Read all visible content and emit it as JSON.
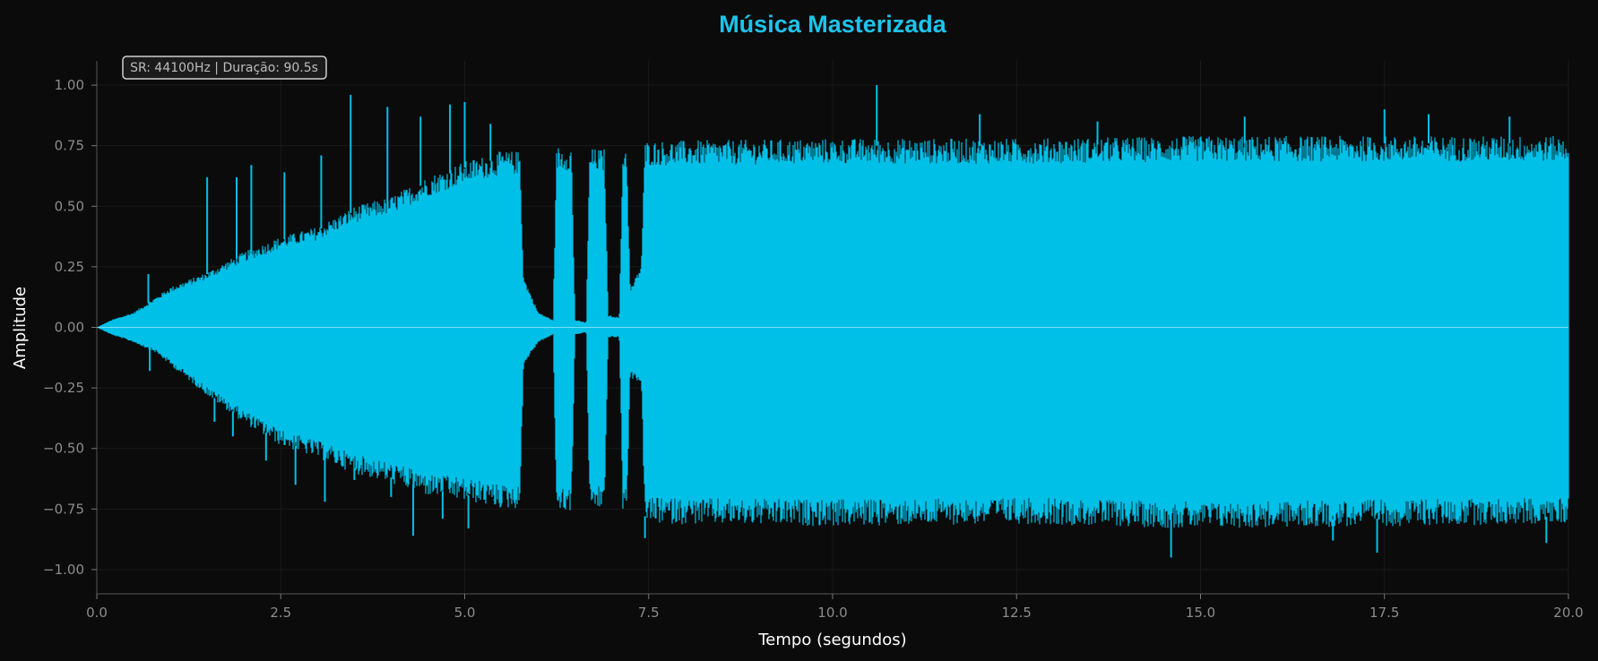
{
  "chart_data": {
    "type": "area",
    "title": "Música Masterizada",
    "xlabel": "Tempo (segundos)",
    "ylabel": "Amplitude",
    "xlim": [
      0.0,
      20.0
    ],
    "ylim": [
      -1.1,
      1.1
    ],
    "xticks": [
      0.0,
      2.5,
      5.0,
      7.5,
      10.0,
      12.5,
      15.0,
      17.5,
      20.0
    ],
    "xtick_labels": [
      "0.0",
      "2.5",
      "5.0",
      "7.5",
      "10.0",
      "12.5",
      "15.0",
      "17.5",
      "20.0"
    ],
    "yticks": [
      1.0,
      0.75,
      0.5,
      0.25,
      0.0,
      -0.25,
      -0.5,
      -0.75,
      -1.0
    ],
    "ytick_labels": [
      "1.00",
      "0.75",
      "0.50",
      "0.25",
      "0.00",
      "−0.25",
      "−0.50",
      "−0.75",
      "−1.00"
    ],
    "annotation": "SR: 44100Hz | Duração: 90.5s",
    "grid": true,
    "series": [
      {
        "color": "#00c0e8",
        "envelope": [
          {
            "x": 0.0,
            "upper": 0.0,
            "lower": 0.0
          },
          {
            "x": 0.2,
            "upper": 0.03,
            "lower": -0.03
          },
          {
            "x": 0.5,
            "upper": 0.06,
            "lower": -0.06
          },
          {
            "x": 0.8,
            "upper": 0.12,
            "lower": -0.1
          },
          {
            "x": 1.0,
            "upper": 0.16,
            "lower": -0.15
          },
          {
            "x": 1.5,
            "upper": 0.22,
            "lower": -0.27
          },
          {
            "x": 2.0,
            "upper": 0.3,
            "lower": -0.38
          },
          {
            "x": 2.5,
            "upper": 0.36,
            "lower": -0.47
          },
          {
            "x": 3.0,
            "upper": 0.4,
            "lower": -0.52
          },
          {
            "x": 3.5,
            "upper": 0.48,
            "lower": -0.58
          },
          {
            "x": 4.0,
            "upper": 0.52,
            "lower": -0.62
          },
          {
            "x": 4.5,
            "upper": 0.6,
            "lower": -0.67
          },
          {
            "x": 5.0,
            "upper": 0.66,
            "lower": -0.69
          },
          {
            "x": 5.5,
            "upper": 0.7,
            "lower": -0.72
          },
          {
            "x": 5.75,
            "upper": 0.7,
            "lower": -0.72
          },
          {
            "x": 5.8,
            "upper": 0.2,
            "lower": -0.15
          },
          {
            "x": 6.0,
            "upper": 0.06,
            "lower": -0.06
          },
          {
            "x": 6.2,
            "upper": 0.03,
            "lower": -0.03
          },
          {
            "x": 6.25,
            "upper": 0.72,
            "lower": -0.73
          },
          {
            "x": 6.45,
            "upper": 0.72,
            "lower": -0.73
          },
          {
            "x": 6.5,
            "upper": 0.03,
            "lower": -0.03
          },
          {
            "x": 6.65,
            "upper": 0.02,
            "lower": -0.02
          },
          {
            "x": 6.7,
            "upper": 0.71,
            "lower": -0.72
          },
          {
            "x": 6.9,
            "upper": 0.71,
            "lower": -0.72
          },
          {
            "x": 6.95,
            "upper": 0.05,
            "lower": -0.04
          },
          {
            "x": 7.1,
            "upper": 0.04,
            "lower": -0.04
          },
          {
            "x": 7.15,
            "upper": 0.72,
            "lower": -0.73
          },
          {
            "x": 7.2,
            "upper": 0.72,
            "lower": -0.73
          },
          {
            "x": 7.25,
            "upper": 0.15,
            "lower": -0.2
          },
          {
            "x": 7.4,
            "upper": 0.25,
            "lower": -0.22
          },
          {
            "x": 7.45,
            "upper": 0.74,
            "lower": -0.78
          },
          {
            "x": 10.0,
            "upper": 0.75,
            "lower": -0.79
          },
          {
            "x": 12.5,
            "upper": 0.75,
            "lower": -0.78
          },
          {
            "x": 15.0,
            "upper": 0.76,
            "lower": -0.8
          },
          {
            "x": 17.5,
            "upper": 0.76,
            "lower": -0.79
          },
          {
            "x": 20.0,
            "upper": 0.76,
            "lower": -0.78
          }
        ],
        "peaks": [
          {
            "x": 0.7,
            "y": 0.22
          },
          {
            "x": 0.72,
            "y": -0.18
          },
          {
            "x": 1.5,
            "y": 0.62
          },
          {
            "x": 1.6,
            "y": -0.39
          },
          {
            "x": 1.9,
            "y": 0.62
          },
          {
            "x": 1.85,
            "y": -0.45
          },
          {
            "x": 2.1,
            "y": 0.67
          },
          {
            "x": 2.3,
            "y": -0.55
          },
          {
            "x": 2.55,
            "y": 0.64
          },
          {
            "x": 2.7,
            "y": -0.65
          },
          {
            "x": 3.05,
            "y": 0.71
          },
          {
            "x": 3.1,
            "y": -0.72
          },
          {
            "x": 3.45,
            "y": 0.96
          },
          {
            "x": 3.5,
            "y": -0.63
          },
          {
            "x": 3.95,
            "y": 0.91
          },
          {
            "x": 4.0,
            "y": -0.7
          },
          {
            "x": 4.4,
            "y": 0.87
          },
          {
            "x": 4.3,
            "y": -0.86
          },
          {
            "x": 4.8,
            "y": 0.92
          },
          {
            "x": 4.7,
            "y": -0.79
          },
          {
            "x": 5.0,
            "y": 0.93
          },
          {
            "x": 5.05,
            "y": -0.83
          },
          {
            "x": 5.35,
            "y": 0.84
          },
          {
            "x": 5.4,
            "y": -0.71
          },
          {
            "x": 10.6,
            "y": 1.0
          },
          {
            "x": 12.0,
            "y": 0.88
          },
          {
            "x": 13.6,
            "y": 0.85
          },
          {
            "x": 14.6,
            "y": -0.95
          },
          {
            "x": 15.6,
            "y": 0.87
          },
          {
            "x": 16.8,
            "y": -0.88
          },
          {
            "x": 17.5,
            "y": 0.9
          },
          {
            "x": 17.4,
            "y": -0.93
          },
          {
            "x": 18.1,
            "y": 0.88
          },
          {
            "x": 19.2,
            "y": 0.87
          },
          {
            "x": 19.7,
            "y": -0.89
          },
          {
            "x": 7.45,
            "y": -0.87
          }
        ]
      }
    ]
  }
}
